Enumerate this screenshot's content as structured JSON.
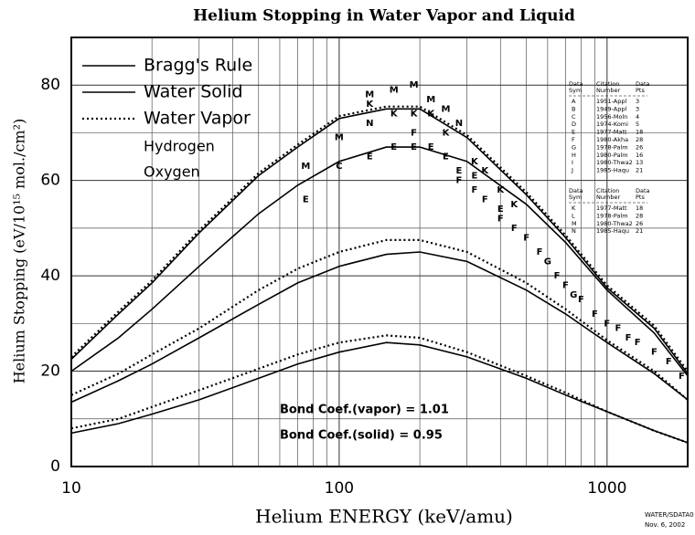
{
  "chart_data": {
    "type": "line",
    "title": "Helium Stopping in Water Vapor and Liquid",
    "x_label": "Helium ENERGY (keV/amu)",
    "y_label": "Helium Stopping (eV/10¹⁵ mol./cm²)",
    "log_x": true,
    "grid": true,
    "xlim": [
      10,
      2000
    ],
    "ylim": [
      0,
      90
    ],
    "xticks": [
      10,
      100,
      1000
    ],
    "xminor": [
      20,
      30,
      40,
      50,
      60,
      70,
      80,
      90,
      200,
      300,
      400,
      500,
      600,
      700,
      800,
      900,
      2000
    ],
    "yticks": [
      0,
      20,
      40,
      60,
      80
    ],
    "yminor": [
      10,
      30,
      50,
      70,
      90
    ],
    "x": [
      10,
      15,
      20,
      30,
      50,
      70,
      100,
      150,
      200,
      300,
      500,
      700,
      1000,
      1500,
      2000
    ],
    "series": [
      {
        "name": "Bragg's Rule",
        "style": "solid",
        "color": "#000000",
        "values": [
          22.5,
          32,
          38.5,
          49,
          61,
          67,
          73,
          75,
          75,
          69,
          57,
          48,
          37.5,
          29,
          19.5
        ]
      },
      {
        "name": "Water Solid",
        "style": "solid",
        "color": "#000000",
        "values": [
          20,
          27,
          33,
          42,
          53,
          59,
          64,
          67,
          67,
          64,
          55,
          47,
          37,
          28,
          19
        ]
      },
      {
        "name": "Water Vapor",
        "style": "dotted",
        "color": "#000000",
        "values": [
          23,
          32.5,
          39,
          49.5,
          61.5,
          67.5,
          73.5,
          75.5,
          75.5,
          69.5,
          57.5,
          48.5,
          38,
          29.5,
          20
        ]
      }
    ],
    "components": [
      {
        "name": "Hydrogen",
        "solid": [
          7,
          9,
          11,
          14,
          18.5,
          21.5,
          24,
          26,
          25.5,
          23,
          18.5,
          15,
          11.5,
          7.5,
          5
        ],
        "vapor": [
          8,
          10,
          12.5,
          16,
          20.5,
          23.5,
          26,
          27.5,
          27,
          24,
          19,
          15.5,
          11.5,
          7.5,
          5
        ]
      },
      {
        "name": "Oxygen",
        "solid": [
          13.5,
          18,
          21.5,
          27,
          34,
          38.5,
          42,
          44.5,
          45,
          43,
          37,
          32,
          26,
          19.5,
          14
        ],
        "vapor": [
          15,
          19.5,
          23.5,
          29,
          37,
          41.5,
          45,
          47.5,
          47.5,
          45,
          38.5,
          33,
          26.5,
          20,
          14
        ]
      }
    ],
    "points": [
      {
        "label": "M",
        "x": 75,
        "y": 63
      },
      {
        "label": "E",
        "x": 75,
        "y": 56
      },
      {
        "label": "M",
        "x": 100,
        "y": 69
      },
      {
        "label": "C",
        "x": 100,
        "y": 63
      },
      {
        "label": "K",
        "x": 130,
        "y": 76
      },
      {
        "label": "N",
        "x": 130,
        "y": 72
      },
      {
        "label": "E",
        "x": 130,
        "y": 65
      },
      {
        "label": "M",
        "x": 130,
        "y": 78
      },
      {
        "label": "M",
        "x": 160,
        "y": 79
      },
      {
        "label": "K",
        "x": 160,
        "y": 74
      },
      {
        "label": "E",
        "x": 160,
        "y": 67
      },
      {
        "label": "M",
        "x": 190,
        "y": 80
      },
      {
        "label": "K",
        "x": 190,
        "y": 74
      },
      {
        "label": "F",
        "x": 190,
        "y": 70
      },
      {
        "label": "E",
        "x": 190,
        "y": 67
      },
      {
        "label": "M",
        "x": 220,
        "y": 77
      },
      {
        "label": "K",
        "x": 220,
        "y": 74
      },
      {
        "label": "E",
        "x": 220,
        "y": 67
      },
      {
        "label": "M",
        "x": 250,
        "y": 75
      },
      {
        "label": "K",
        "x": 250,
        "y": 70
      },
      {
        "label": "E",
        "x": 250,
        "y": 65
      },
      {
        "label": "N",
        "x": 280,
        "y": 72
      },
      {
        "label": "E",
        "x": 280,
        "y": 62
      },
      {
        "label": "F",
        "x": 280,
        "y": 60
      },
      {
        "label": "K",
        "x": 320,
        "y": 64
      },
      {
        "label": "E",
        "x": 320,
        "y": 61
      },
      {
        "label": "F",
        "x": 320,
        "y": 58
      },
      {
        "label": "K",
        "x": 350,
        "y": 62
      },
      {
        "label": "F",
        "x": 350,
        "y": 56
      },
      {
        "label": "K",
        "x": 400,
        "y": 58
      },
      {
        "label": "E",
        "x": 400,
        "y": 54
      },
      {
        "label": "F",
        "x": 400,
        "y": 52
      },
      {
        "label": "K",
        "x": 450,
        "y": 55
      },
      {
        "label": "F",
        "x": 450,
        "y": 50
      },
      {
        "label": "F",
        "x": 500,
        "y": 48
      },
      {
        "label": "F",
        "x": 560,
        "y": 45
      },
      {
        "label": "G",
        "x": 600,
        "y": 43
      },
      {
        "label": "F",
        "x": 650,
        "y": 40
      },
      {
        "label": "F",
        "x": 700,
        "y": 38
      },
      {
        "label": "G",
        "x": 750,
        "y": 36
      },
      {
        "label": "F",
        "x": 800,
        "y": 35
      },
      {
        "label": "F",
        "x": 900,
        "y": 32
      },
      {
        "label": "F",
        "x": 1000,
        "y": 30
      },
      {
        "label": "F",
        "x": 1100,
        "y": 29
      },
      {
        "label": "F",
        "x": 1200,
        "y": 27
      },
      {
        "label": "F",
        "x": 1300,
        "y": 26
      },
      {
        "label": "F",
        "x": 1500,
        "y": 24
      },
      {
        "label": "F",
        "x": 1700,
        "y": 22
      },
      {
        "label": "F",
        "x": 1900,
        "y": 19
      }
    ],
    "annotations": [
      "Bond Coef.(vapor) = 1.01",
      "Bond Coef.(solid) = 0.95"
    ],
    "tables": [
      {
        "header": [
          [
            "Data",
            "Sym"
          ],
          [
            "Citation",
            "Number"
          ],
          [
            "Data",
            "Pts"
          ]
        ],
        "rows": [
          [
            "A",
            "1951-Appl",
            3
          ],
          [
            "B",
            "1949-Appl",
            3
          ],
          [
            "C",
            "1956-Moln",
            4
          ],
          [
            "D",
            "1974-Komi",
            5
          ],
          [
            "E",
            "1977-Matt",
            18
          ],
          [
            "F",
            "1980-Akha",
            28
          ],
          [
            "G",
            "1978-Palm",
            26
          ],
          [
            "H",
            "1980-Palm",
            16
          ],
          [
            "I",
            "1980-Thwa2",
            13
          ],
          [
            "J",
            "1985-Haqu",
            21
          ]
        ]
      },
      {
        "header": [
          [
            "Data",
            "Sym"
          ],
          [
            "Citation",
            "Number"
          ],
          [
            "Data",
            "Pts"
          ]
        ],
        "rows": [
          [
            "K",
            "1977-Matt",
            18
          ],
          [
            "L",
            "1978-Palm",
            28
          ],
          [
            "M",
            "1980-Thwa2",
            26
          ],
          [
            "N",
            "1985-Haqu",
            21
          ]
        ]
      }
    ],
    "footer": [
      "WATER/SDATA0",
      "Nov. 6, 2002"
    ]
  }
}
